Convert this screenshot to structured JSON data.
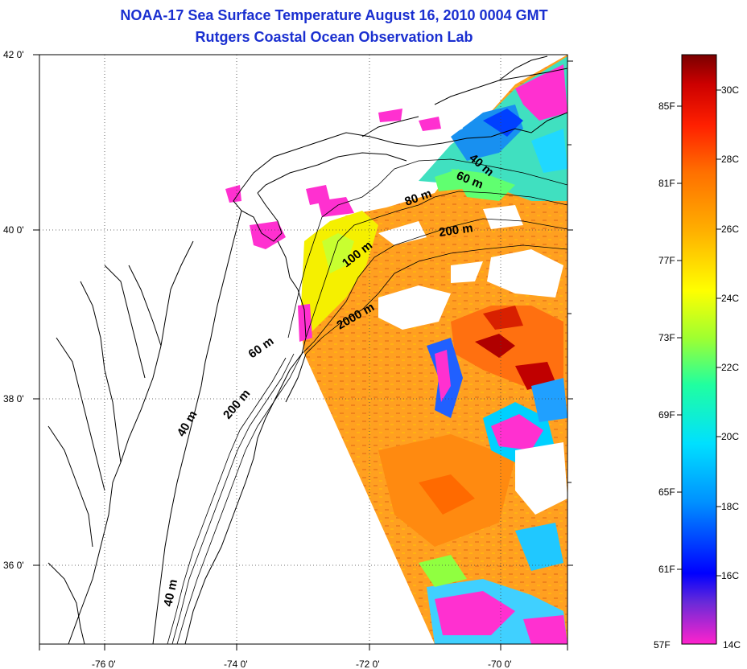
{
  "header": {
    "title_line1": "NOAA-17 Sea Surface Temperature August 16, 2010 0004 GMT",
    "title_line2": "Rutgers Coastal Ocean Observation Lab"
  },
  "map": {
    "lon_ticks": [
      "-76 0'",
      "-74 0'",
      "-72 0'",
      "-70 0'"
    ],
    "lat_ticks": [
      "42 0'",
      "40 0'",
      "38 0'",
      "36 0'"
    ],
    "grid": "dotted",
    "contour_labels": [
      "40 m",
      "60 m",
      "80 m",
      "200 m",
      "100 m",
      "2000 m",
      "60 m",
      "40 m",
      "200 m",
      "40 m"
    ]
  },
  "colorbar": {
    "fahrenheit": [
      "85F",
      "81F",
      "77F",
      "73F",
      "69F",
      "65F",
      "61F",
      "57F"
    ],
    "celsius": [
      "30C",
      "28C",
      "26C",
      "24C",
      "22C",
      "20C",
      "18C",
      "16C",
      "14C"
    ],
    "colors": [
      "#ff22cc",
      "#6a2ad8",
      "#0000ff",
      "#0090ff",
      "#00e0ff",
      "#20ffa0",
      "#a0ff30",
      "#ffff00",
      "#ffb000",
      "#ff7000",
      "#ff2000",
      "#cc0000",
      "#7a0000"
    ]
  }
}
